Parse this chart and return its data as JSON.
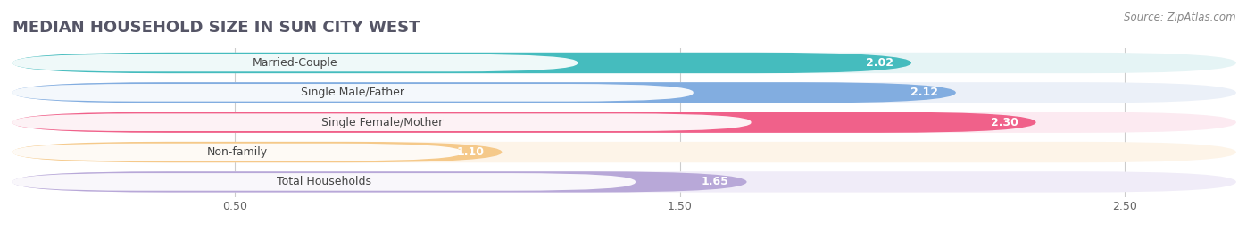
{
  "title": "MEDIAN HOUSEHOLD SIZE IN SUN CITY WEST",
  "source": "Source: ZipAtlas.com",
  "categories": [
    "Married-Couple",
    "Single Male/Father",
    "Single Female/Mother",
    "Non-family",
    "Total Households"
  ],
  "values": [
    2.02,
    2.12,
    2.3,
    1.1,
    1.65
  ],
  "bar_colors": [
    "#45BCBE",
    "#82ADE0",
    "#F0618A",
    "#F5C98A",
    "#B8A8D8"
  ],
  "bar_bg_colors": [
    "#E5F4F5",
    "#EBF0F8",
    "#FCEAF1",
    "#FDF4E8",
    "#F0ECF8"
  ],
  "label_colors": [
    "#45BCBE",
    "#82ADE0",
    "#F0618A",
    "#F5C98A",
    "#B8A8D8"
  ],
  "fig_bg": "#FFFFFF",
  "between_bg": "#F0F0F0",
  "xlim_min": 0.0,
  "xlim_max": 2.75,
  "xticks": [
    0.5,
    1.5,
    2.5
  ],
  "xtick_labels": [
    "0.50",
    "1.50",
    "2.50"
  ],
  "title_fontsize": 13,
  "label_fontsize": 9,
  "value_fontsize": 9,
  "source_fontsize": 8.5,
  "bar_height": 0.7,
  "bar_gap": 0.15
}
